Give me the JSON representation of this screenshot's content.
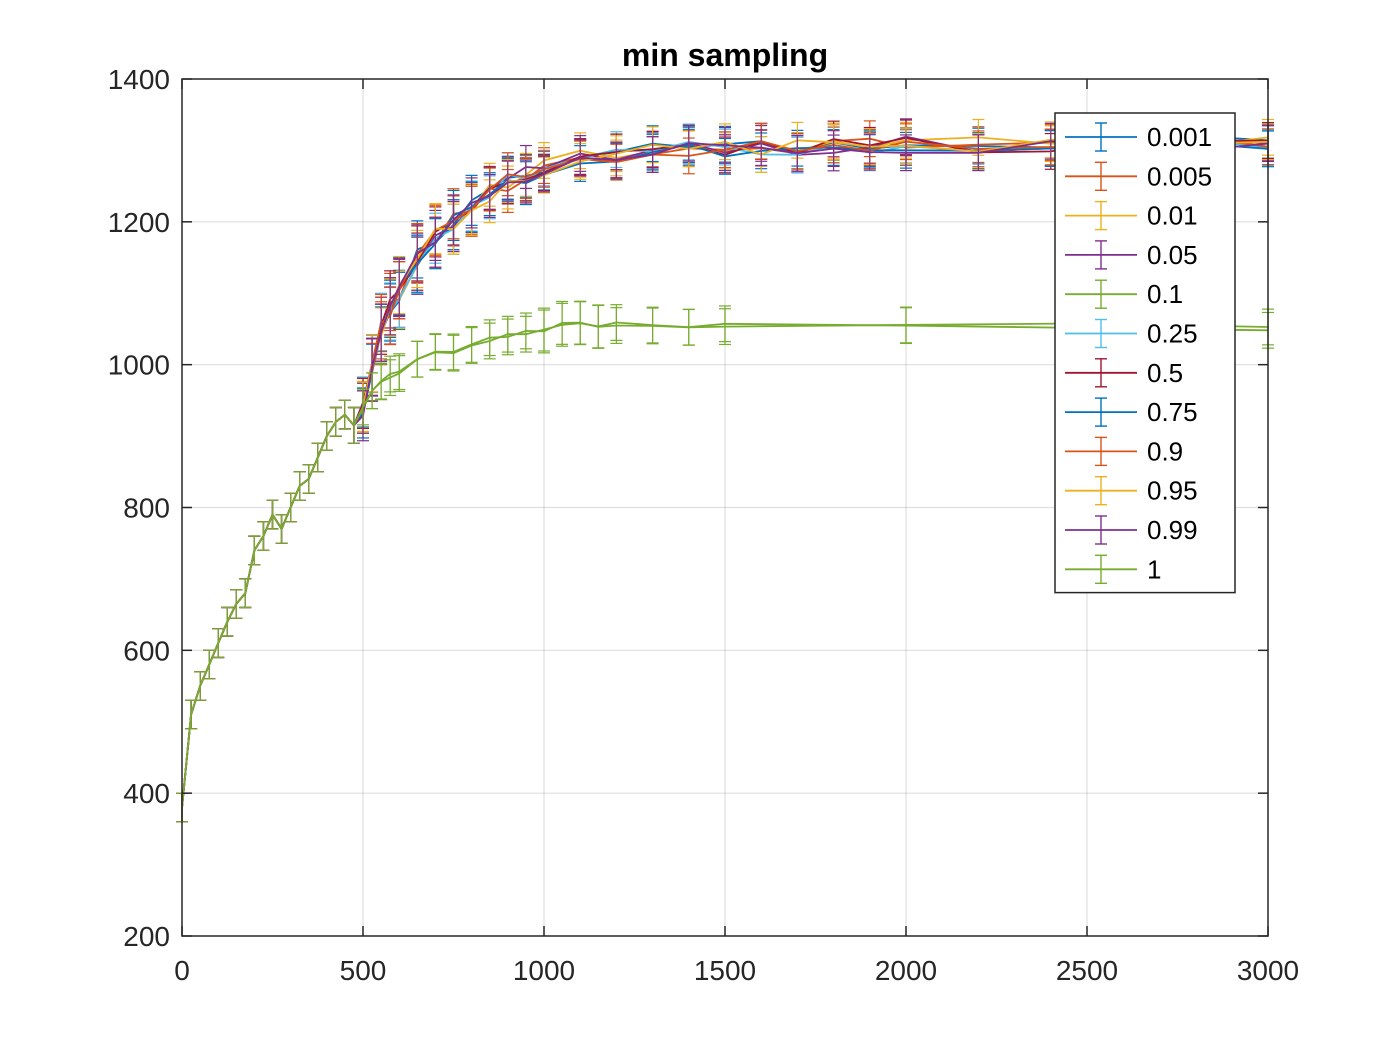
{
  "chart_data": {
    "type": "line",
    "title": "min sampling",
    "xlabel": "",
    "ylabel": "",
    "xlim": [
      0,
      3000
    ],
    "ylim": [
      200,
      1400
    ],
    "xticks": [
      0,
      500,
      1000,
      1500,
      2000,
      2500,
      3000
    ],
    "yticks": [
      200,
      400,
      600,
      800,
      1000,
      1200,
      1400
    ],
    "grid": true,
    "legend_position": "top-right",
    "error_bars": true,
    "series": [
      {
        "name": "0.001",
        "color": "#0072BD"
      },
      {
        "name": "0.005",
        "color": "#D95319"
      },
      {
        "name": "0.01",
        "color": "#EDB120"
      },
      {
        "name": "0.05",
        "color": "#7E2F8E"
      },
      {
        "name": "0.1",
        "color": "#77AC30"
      },
      {
        "name": "0.25",
        "color": "#4DBEEE"
      },
      {
        "name": "0.5",
        "color": "#A2142F"
      },
      {
        "name": "0.75",
        "color": "#0072BD"
      },
      {
        "name": "0.9",
        "color": "#D95319"
      },
      {
        "name": "0.95",
        "color": "#EDB120"
      },
      {
        "name": "0.99",
        "color": "#7E2F8E"
      },
      {
        "name": "1",
        "color": "#77AC30"
      }
    ],
    "shared_early_curve": {
      "x": [
        0,
        25,
        50,
        75,
        100,
        125,
        150,
        175,
        200,
        225,
        250,
        275,
        300,
        325,
        350,
        375,
        400,
        425,
        450,
        475
      ],
      "y": [
        380,
        510,
        550,
        580,
        610,
        640,
        665,
        680,
        740,
        760,
        790,
        770,
        800,
        830,
        840,
        870,
        900,
        920,
        930,
        915
      ],
      "err": [
        20,
        20,
        20,
        20,
        20,
        20,
        20,
        20,
        20,
        20,
        20,
        20,
        20,
        20,
        20,
        20,
        20,
        20,
        20,
        20
      ]
    },
    "group_high": {
      "x": [
        475,
        500,
        525,
        550,
        575,
        600,
        650,
        700,
        750,
        800,
        850,
        900,
        950,
        1000,
        1100,
        1200,
        1300,
        1400,
        1500,
        1600,
        1700,
        1800,
        1900,
        2000,
        2200,
        2400,
        2600,
        2800,
        3000
      ],
      "y": [
        915,
        940,
        1000,
        1050,
        1080,
        1100,
        1150,
        1180,
        1200,
        1220,
        1240,
        1255,
        1265,
        1275,
        1290,
        1295,
        1298,
        1300,
        1302,
        1304,
        1305,
        1306,
        1307,
        1308,
        1308,
        1309,
        1310,
        1310,
        1310
      ],
      "err": [
        25,
        35,
        40,
        40,
        40,
        40,
        40,
        35,
        35,
        35,
        30,
        30,
        30,
        25,
        25,
        25,
        25,
        25,
        25,
        25,
        25,
        25,
        25,
        25,
        25,
        25,
        25,
        25,
        25
      ]
    },
    "group_low": {
      "x": [
        475,
        500,
        525,
        550,
        575,
        600,
        650,
        700,
        750,
        800,
        850,
        900,
        950,
        1000,
        1050,
        1100,
        1150,
        1200,
        1300,
        1400,
        1500,
        2000,
        2500,
        3000
      ],
      "y": [
        915,
        940,
        960,
        975,
        985,
        990,
        1005,
        1015,
        1020,
        1030,
        1035,
        1040,
        1045,
        1050,
        1055,
        1058,
        1055,
        1055,
        1055,
        1055,
        1055,
        1055,
        1055,
        1050
      ],
      "err": [
        25,
        25,
        25,
        25,
        25,
        25,
        25,
        25,
        25,
        25,
        25,
        25,
        25,
        30,
        30,
        30,
        30,
        25,
        25,
        25,
        25,
        25,
        25,
        25
      ]
    }
  }
}
